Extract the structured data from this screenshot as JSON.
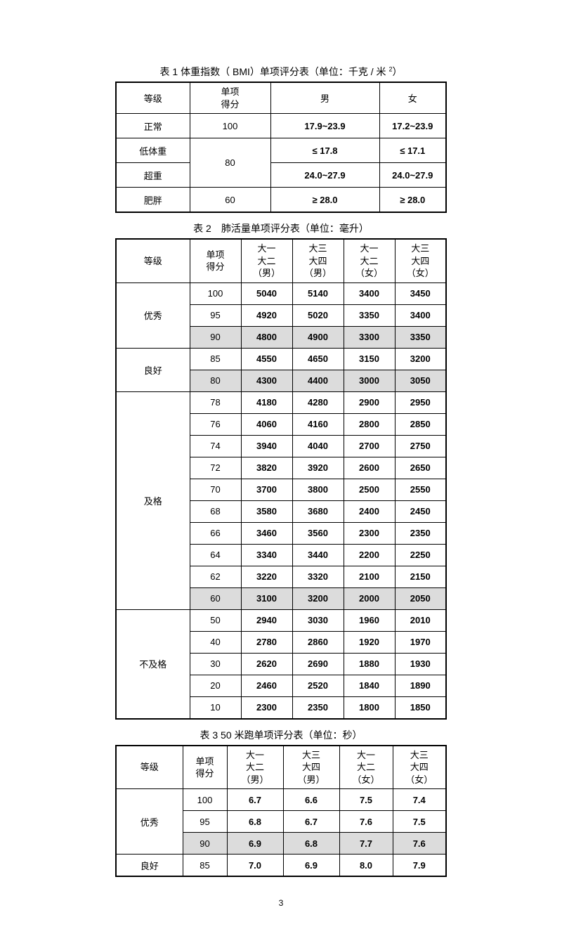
{
  "page_number": "3",
  "table1": {
    "caption_parts": {
      "prefix": "表 1 体重指数（ BMI）单项评分表（单位：千克  / 米 ",
      "sup": "2",
      "suffix": "）"
    },
    "columns": [
      "等级",
      "单项\n得分",
      "男",
      "女"
    ],
    "rows": [
      {
        "grade": "正常",
        "score": "100",
        "male": "17.9~23.9",
        "female": "17.2~23.9"
      },
      {
        "grade": "低体重",
        "score_merged": "80",
        "male": "≤ 17.8",
        "female": "≤ 17.1"
      },
      {
        "grade": "超重",
        "male": "24.0~27.9",
        "female": "24.0~27.9"
      },
      {
        "grade": "肥胖",
        "score": "60",
        "male": "≥ 28.0",
        "female": "≥ 28.0"
      }
    ]
  },
  "table2": {
    "caption": "表 2　肺活量单项评分表（单位：毫升）",
    "header": {
      "c1": "等级",
      "c2": "单项\n得分",
      "c3": "大一\n大二\n（男）",
      "c4": "大三\n大四\n（男）",
      "c5": "大一\n大二\n（女）",
      "c6": "大三\n大四\n（女）"
    },
    "groups": [
      {
        "label": "优秀",
        "rows": [
          {
            "s": "100",
            "v": [
              "5040",
              "5140",
              "3400",
              "3450"
            ],
            "shade": false
          },
          {
            "s": "95",
            "v": [
              "4920",
              "5020",
              "3350",
              "3400"
            ],
            "shade": false
          },
          {
            "s": "90",
            "v": [
              "4800",
              "4900",
              "3300",
              "3350"
            ],
            "shade": true
          }
        ]
      },
      {
        "label": "良好",
        "rows": [
          {
            "s": "85",
            "v": [
              "4550",
              "4650",
              "3150",
              "3200"
            ],
            "shade": false
          },
          {
            "s": "80",
            "v": [
              "4300",
              "4400",
              "3000",
              "3050"
            ],
            "shade": true
          }
        ]
      },
      {
        "label": "及格",
        "rows": [
          {
            "s": "78",
            "v": [
              "4180",
              "4280",
              "2900",
              "2950"
            ],
            "shade": false
          },
          {
            "s": "76",
            "v": [
              "4060",
              "4160",
              "2800",
              "2850"
            ],
            "shade": false
          },
          {
            "s": "74",
            "v": [
              "3940",
              "4040",
              "2700",
              "2750"
            ],
            "shade": false
          },
          {
            "s": "72",
            "v": [
              "3820",
              "3920",
              "2600",
              "2650"
            ],
            "shade": false
          },
          {
            "s": "70",
            "v": [
              "3700",
              "3800",
              "2500",
              "2550"
            ],
            "shade": false
          },
          {
            "s": "68",
            "v": [
              "3580",
              "3680",
              "2400",
              "2450"
            ],
            "shade": false
          },
          {
            "s": "66",
            "v": [
              "3460",
              "3560",
              "2300",
              "2350"
            ],
            "shade": false
          },
          {
            "s": "64",
            "v": [
              "3340",
              "3440",
              "2200",
              "2250"
            ],
            "shade": false
          },
          {
            "s": "62",
            "v": [
              "3220",
              "3320",
              "2100",
              "2150"
            ],
            "shade": false
          },
          {
            "s": "60",
            "v": [
              "3100",
              "3200",
              "2000",
              "2050"
            ],
            "shade": true
          }
        ]
      },
      {
        "label": "不及格",
        "rows": [
          {
            "s": "50",
            "v": [
              "2940",
              "3030",
              "1960",
              "2010"
            ],
            "shade": false
          },
          {
            "s": "40",
            "v": [
              "2780",
              "2860",
              "1920",
              "1970"
            ],
            "shade": false
          },
          {
            "s": "30",
            "v": [
              "2620",
              "2690",
              "1880",
              "1930"
            ],
            "shade": false
          },
          {
            "s": "20",
            "v": [
              "2460",
              "2520",
              "1840",
              "1890"
            ],
            "shade": false
          },
          {
            "s": "10",
            "v": [
              "2300",
              "2350",
              "1800",
              "1850"
            ],
            "shade": false
          }
        ]
      }
    ]
  },
  "table3": {
    "caption": "表 3 50  米跑单项评分表（单位：秒）",
    "header": {
      "c1": "等级",
      "c2": "单项\n得分",
      "c3": "大一\n大二\n（男）",
      "c4": "大三\n大四\n（男）",
      "c5": "大一\n大二\n（女）",
      "c6": "大三\n大四\n（女）"
    },
    "groups": [
      {
        "label": "优秀",
        "rows": [
          {
            "s": "100",
            "v": [
              "6.7",
              "6.6",
              "7.5",
              "7.4"
            ],
            "shade": false
          },
          {
            "s": "95",
            "v": [
              "6.8",
              "6.7",
              "7.6",
              "7.5"
            ],
            "shade": false
          },
          {
            "s": "90",
            "v": [
              "6.9",
              "6.8",
              "7.7",
              "7.6"
            ],
            "shade": true
          }
        ]
      },
      {
        "label": "良好",
        "rows": [
          {
            "s": "85",
            "v": [
              "7.0",
              "6.9",
              "8.0",
              "7.9"
            ],
            "shade": false
          }
        ]
      }
    ]
  },
  "colors": {
    "border": "#000000",
    "shaded_bg": "#dcdcdc",
    "background": "#ffffff",
    "text": "#000000"
  }
}
